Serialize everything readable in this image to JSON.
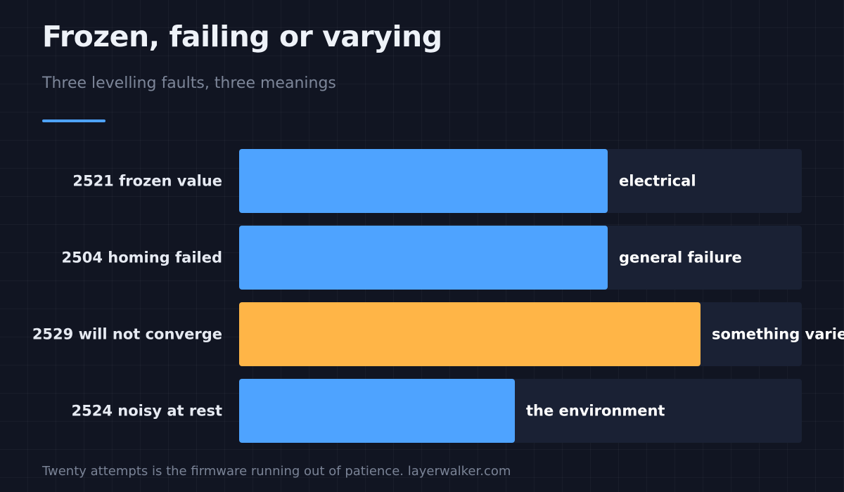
{
  "header": {
    "title": "Frozen, failing or varying",
    "subtitle": "Three levelling faults, three meanings"
  },
  "colors": {
    "background": "#111522",
    "accent": "#4ea3ff",
    "highlight": "#ffb547",
    "track": "#1a2134",
    "category_label": "#e6eaf2",
    "bar_label": "#ffffff"
  },
  "chart_data": {
    "type": "bar",
    "orientation": "horizontal",
    "categories": [
      "2521 frozen value",
      "2504 homing failed",
      "2529 will not converge",
      "2524 noisy at rest"
    ],
    "values": [
      0.655,
      0.655,
      0.82,
      0.49
    ],
    "bar_labels": [
      "electrical",
      "general failure",
      "something varies",
      "the environment"
    ],
    "highlighted_index": 2,
    "xlim": [
      0,
      1
    ],
    "title": "",
    "xlabel": "",
    "ylabel": "",
    "grid": false
  },
  "footer": {
    "text": "Twenty attempts is the firmware running out of patience. layerwalker.com"
  }
}
